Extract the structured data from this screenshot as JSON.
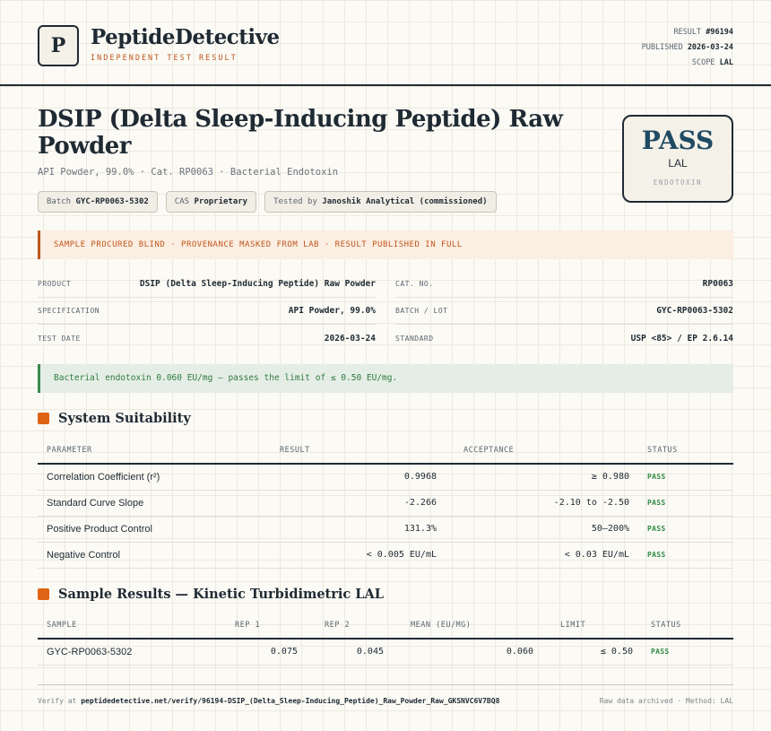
{
  "header": {
    "logo_letter": "P",
    "brand": "PeptideDetective",
    "tagline": "INDEPENDENT TEST RESULT",
    "result_label": "RESULT",
    "result_value": "#96194",
    "published_label": "PUBLISHED",
    "published_value": "2026-03-24",
    "scope_label": "SCOPE",
    "scope_value": "LAL"
  },
  "product": {
    "title": "DSIP (Delta Sleep-Inducing Peptide) Raw Powder",
    "subtitle": "API Powder, 99.0% · Cat. RP0063 · Bacterial Endotoxin",
    "chips": [
      {
        "label": "Batch",
        "value": "GYC-RP0063-5302"
      },
      {
        "label": "CAS",
        "value": "Proprietary"
      },
      {
        "label": "Tested by",
        "value": "Janoshik Analytical (commissioned)"
      }
    ]
  },
  "stamp": {
    "result": "PASS",
    "method": "LAL",
    "category": "ENDOTOXIN"
  },
  "warning_banner": "SAMPLE PROCURED BLIND · PROVENANCE MASKED FROM LAB · RESULT PUBLISHED IN FULL",
  "info_left": [
    {
      "label": "PRODUCT",
      "value": "DSIP (Delta Sleep-Inducing Peptide) Raw Powder"
    },
    {
      "label": "SPECIFICATION",
      "value": "API Powder, 99.0%"
    },
    {
      "label": "TEST DATE",
      "value": "2026-03-24"
    }
  ],
  "info_right": [
    {
      "label": "CAT. NO.",
      "value": "RP0063"
    },
    {
      "label": "BATCH / LOT",
      "value": "GYC-RP0063-5302"
    },
    {
      "label": "STANDARD",
      "value": "USP <85> / EP 2.6.14"
    }
  ],
  "ok_banner": "Bacterial endotoxin 0.060 EU/mg — passes the limit of ≤ 0.50 EU/mg.",
  "suitability": {
    "title": "System Suitability",
    "headers": [
      "PARAMETER",
      "RESULT",
      "ACCEPTANCE",
      "STATUS"
    ],
    "rows": [
      {
        "parameter": "Correlation Coefficient (r²)",
        "result": "0.9968",
        "acceptance": "≥ 0.980",
        "status": "PASS"
      },
      {
        "parameter": "Standard Curve Slope",
        "result": "-2.266",
        "acceptance": "-2.10 to -2.50",
        "status": "PASS"
      },
      {
        "parameter": "Positive Product Control",
        "result": "131.3%",
        "acceptance": "50–200%",
        "status": "PASS"
      },
      {
        "parameter": "Negative Control",
        "result": "< 0.005 EU/mL",
        "acceptance": "< 0.03 EU/mL",
        "status": "PASS"
      }
    ]
  },
  "samples": {
    "title": "Sample Results — Kinetic Turbidimetric LAL",
    "headers": [
      "SAMPLE",
      "REP 1",
      "REP 2",
      "MEAN (EU/MG)",
      "LIMIT",
      "STATUS"
    ],
    "rows": [
      {
        "sample": "GYC-RP0063-5302",
        "rep1": "0.075",
        "rep2": "0.045",
        "mean": "0.060",
        "limit": "≤ 0.50",
        "status": "PASS"
      }
    ]
  },
  "footer": {
    "verify_prefix": "Verify at",
    "verify_url": "peptidedetective.net/verify/96194-DSIP_(Delta_Sleep-Inducing_Peptide)_Raw_Powder_Raw_GKSNVC6V7BQ8",
    "right_text": "Raw data archived · Method: LAL"
  }
}
